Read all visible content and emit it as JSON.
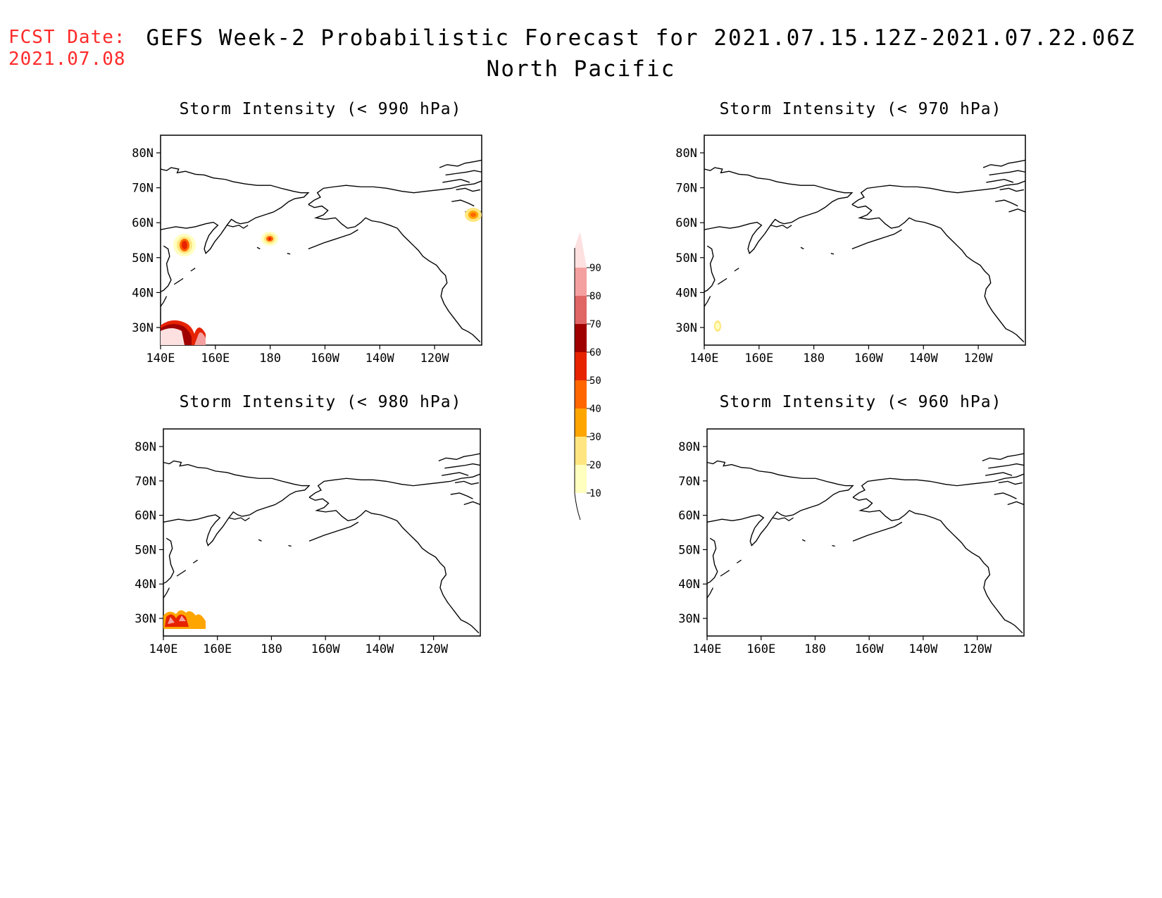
{
  "header": {
    "fcst_label": "FCST Date:",
    "fcst_date": "2021.07.08",
    "title_line1": "GEFS Week-2 Probabilistic Forecast for 2021.07.15.12Z-2021.07.22.06Z",
    "title_line2": "North Pacific"
  },
  "panels": [
    {
      "title": "Storm Intensity (< 990 hPa)"
    },
    {
      "title": "Storm Intensity (< 970 hPa)"
    },
    {
      "title": "Storm Intensity (< 980 hPa)"
    },
    {
      "title": "Storm Intensity (< 960 hPa)"
    }
  ],
  "axes": {
    "lat_ticks": [
      "80N",
      "70N",
      "60N",
      "50N",
      "40N",
      "30N"
    ],
    "lon_ticks": [
      "140E",
      "160E",
      "180",
      "160W",
      "140W",
      "120W"
    ]
  },
  "colorbar": {
    "levels": [
      "10",
      "20",
      "30",
      "40",
      "50",
      "60",
      "70",
      "80",
      "90"
    ],
    "colors": [
      "#ffffc0",
      "#ffe680",
      "#ffa500",
      "#ff6600",
      "#e62200",
      "#a00000",
      "#e06666",
      "#f4a0a0",
      "#fde0e0"
    ]
  }
}
